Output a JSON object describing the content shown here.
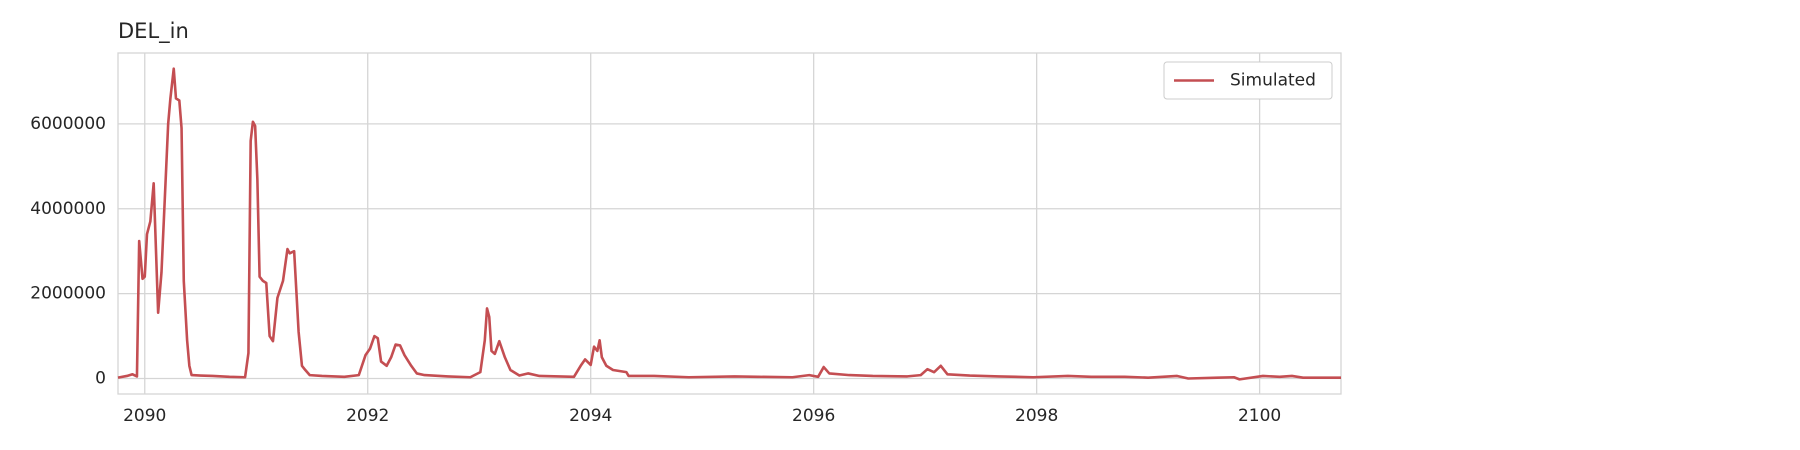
{
  "chart_data": {
    "type": "line",
    "title": "DEL_in",
    "x": [
      2089.76,
      2089.84,
      2089.89,
      2089.93,
      2089.95,
      2089.98,
      2090.0,
      2090.02,
      2090.05,
      2090.08,
      2090.12,
      2090.15,
      2090.21,
      2090.23,
      2090.26,
      2090.28,
      2090.31,
      2090.33,
      2090.35,
      2090.38,
      2090.4,
      2090.42,
      2090.5,
      2090.61,
      2090.76,
      2090.9,
      2090.93,
      2090.95,
      2090.97,
      2090.99,
      2091.01,
      2091.03,
      2091.06,
      2091.09,
      2091.12,
      2091.15,
      2091.19,
      2091.24,
      2091.28,
      2091.3,
      2091.34,
      2091.38,
      2091.41,
      2091.44,
      2091.48,
      2091.59,
      2091.79,
      2091.92,
      2091.98,
      2092.02,
      2092.06,
      2092.09,
      2092.12,
      2092.17,
      2092.21,
      2092.25,
      2092.29,
      2092.33,
      2092.39,
      2092.44,
      2092.51,
      2092.72,
      2092.92,
      2093.01,
      2093.05,
      2093.07,
      2093.09,
      2093.11,
      2093.14,
      2093.18,
      2093.23,
      2093.28,
      2093.36,
      2093.44,
      2093.54,
      2093.85,
      2093.91,
      2093.95,
      2094.0,
      2094.03,
      2094.06,
      2094.08,
      2094.1,
      2094.14,
      2094.2,
      2094.32,
      2094.34,
      2094.57,
      2094.88,
      2095.29,
      2095.5,
      2095.81,
      2095.96,
      2096.04,
      2096.09,
      2096.14,
      2096.32,
      2096.53,
      2096.84,
      2096.96,
      2097.02,
      2097.08,
      2097.14,
      2097.2,
      2097.4,
      2097.66,
      2097.97,
      2098.28,
      2098.49,
      2098.79,
      2099.0,
      2099.26,
      2099.36,
      2099.62,
      2099.77,
      2099.82,
      2100.03,
      2100.18,
      2100.29,
      2100.39,
      2100.73
    ],
    "series": [
      {
        "name": "Simulated",
        "color": "#c44e52",
        "values": [
          20000,
          60000,
          100000,
          50000,
          3240000,
          2350000,
          2400000,
          3400000,
          3700000,
          4600000,
          1550000,
          2500000,
          6000000,
          6600000,
          7300000,
          6600000,
          6550000,
          5900000,
          2300000,
          900000,
          300000,
          80000,
          70000,
          60000,
          40000,
          30000,
          600000,
          5600000,
          6050000,
          5950000,
          4700000,
          2400000,
          2300000,
          2250000,
          1000000,
          880000,
          1900000,
          2300000,
          3050000,
          2950000,
          3000000,
          1100000,
          300000,
          200000,
          80000,
          60000,
          40000,
          80000,
          550000,
          700000,
          1000000,
          950000,
          400000,
          300000,
          500000,
          800000,
          780000,
          550000,
          300000,
          120000,
          80000,
          50000,
          30000,
          150000,
          900000,
          1650000,
          1450000,
          650000,
          580000,
          880000,
          500000,
          200000,
          70000,
          120000,
          60000,
          40000,
          300000,
          450000,
          320000,
          750000,
          650000,
          900000,
          500000,
          300000,
          200000,
          150000,
          60000,
          60000,
          30000,
          50000,
          40000,
          30000,
          80000,
          40000,
          270000,
          120000,
          80000,
          60000,
          50000,
          80000,
          220000,
          150000,
          300000,
          100000,
          70000,
          50000,
          30000,
          60000,
          40000,
          40000,
          20000,
          60000,
          0,
          20000,
          30000,
          -20000,
          60000,
          40000,
          60000,
          20000,
          20000
        ]
      }
    ],
    "xlim": [
      2089.76,
      2100.73
    ],
    "xticks": [
      2090,
      2092,
      2094,
      2096,
      2098,
      2100
    ],
    "ylim": [
      -365000,
      7670000
    ],
    "yticks": [
      0,
      2000000,
      4000000,
      6000000
    ],
    "grid": true,
    "legend": "upper right"
  }
}
